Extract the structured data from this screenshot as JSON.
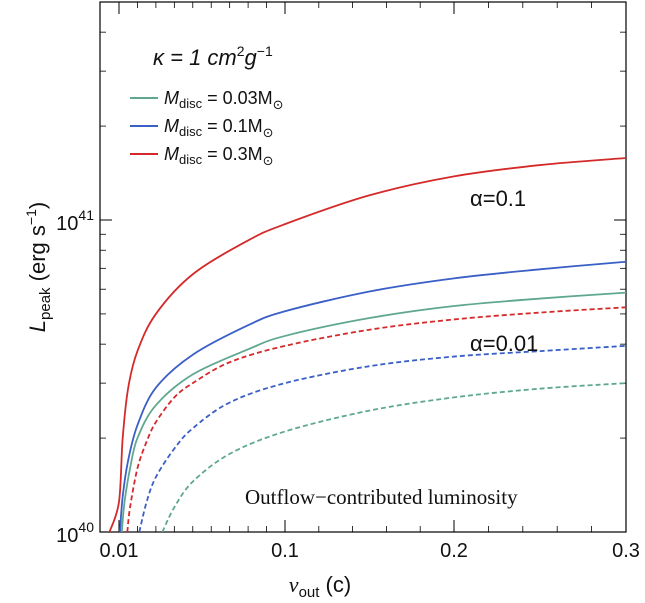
{
  "chart_data": {
    "type": "line",
    "title": "",
    "xlabel": {
      "main": "v",
      "sub": "out",
      "unit": " (c)"
    },
    "ylabel": {
      "main": "L",
      "sub": "peak",
      "unit_pre": " (erg s",
      "unit_exp": "−1",
      "unit_post": ")"
    },
    "x_scale": "broken-linear",
    "y_scale": "log",
    "xlim": [
      0.009,
      0.3
    ],
    "ylim": [
      1e+40,
      4.6e+41
    ],
    "x_ticks": [
      {
        "value": 0.01,
        "label": "0.01"
      },
      {
        "value": 0.1,
        "label": "0.1"
      },
      {
        "value": 0.2,
        "label": "0.2"
      },
      {
        "value": 0.3,
        "label": "0.3"
      }
    ],
    "y_ticks": [
      {
        "value": 1e+40,
        "base": "10",
        "exp": "40"
      },
      {
        "value": 1e+41,
        "base": "10",
        "exp": "41"
      }
    ],
    "annotations": {
      "kappa": {
        "pre": "κ = 1 cm",
        "sup1": "2",
        "mid": "g",
        "sup2": "−1"
      },
      "alpha_high": "α=0.1",
      "alpha_low": "α=0.01",
      "caption": "Outflow−contributed luminosity"
    },
    "legend": {
      "position": "top-left",
      "entries": [
        {
          "name_main": "M",
          "name_sub": "disc",
          "eq": " = 0.03M",
          "sun": "⊙",
          "color": "#5fa88f"
        },
        {
          "name_main": "M",
          "name_sub": "disc",
          "eq": " =   0.1M",
          "sun": "⊙",
          "color": "#3a5fc6"
        },
        {
          "name_main": "M",
          "name_sub": "disc",
          "eq": " =   0.3M",
          "sun": "⊙",
          "color": "#d42a2a"
        }
      ]
    },
    "series": [
      {
        "alpha": "0.1",
        "disc": "0.03",
        "color": "#5fa88f",
        "dash": false,
        "x": [
          0.0115,
          0.013,
          0.016,
          0.02,
          0.03,
          0.05,
          0.08,
          0.1,
          0.15,
          0.2,
          0.25,
          0.3
        ],
        "y": [
          1e+40,
          1.25e+40,
          1.6e+40,
          2e+40,
          2.55e+40,
          3.2e+40,
          3.85e+40,
          4.25e+40,
          4.85e+40,
          5.3e+40,
          5.6e+40,
          5.85e+40
        ]
      },
      {
        "alpha": "0.1",
        "disc": "0.1",
        "color": "#3a5fc6",
        "dash": false,
        "x": [
          0.0105,
          0.012,
          0.015,
          0.02,
          0.03,
          0.05,
          0.08,
          0.1,
          0.15,
          0.2,
          0.25,
          0.3
        ],
        "y": [
          1e+40,
          1.3e+40,
          1.7e+40,
          2.2e+40,
          2.9e+40,
          3.7e+40,
          4.6e+40,
          5.1e+40,
          5.9e+40,
          6.5e+40,
          6.95e+40,
          7.35e+40
        ]
      },
      {
        "alpha": "0.1",
        "disc": "0.3",
        "color": "#d42a2a",
        "dash": false,
        "x": [
          0.0095,
          0.01,
          0.012,
          0.015,
          0.02,
          0.03,
          0.05,
          0.08,
          0.1,
          0.15,
          0.2,
          0.25,
          0.3
        ],
        "y": [
          1e+40,
          1.25e+40,
          2e+40,
          2.9e+40,
          3.8e+40,
          5e+40,
          6.7e+40,
          8.6e+40,
          9.7e+40,
          1.2e+41,
          1.38e+41,
          1.5e+41,
          1.58e+41
        ]
      },
      {
        "alpha": "0.01",
        "disc": "0.03",
        "color": "#5fa88f",
        "dash": true,
        "x": [
          0.0335,
          0.04,
          0.05,
          0.07,
          0.1,
          0.15,
          0.2,
          0.25,
          0.3
        ],
        "y": [
          1e+40,
          1.2e+40,
          1.45e+40,
          1.78e+40,
          2.1e+40,
          2.45e+40,
          2.7e+40,
          2.88e+40,
          3e+40
        ]
      },
      {
        "alpha": "0.01",
        "disc": "0.1",
        "color": "#3a5fc6",
        "dash": true,
        "x": [
          0.021,
          0.025,
          0.03,
          0.04,
          0.05,
          0.07,
          0.1,
          0.15,
          0.2,
          0.25,
          0.3
        ],
        "y": [
          1e+40,
          1.25e+40,
          1.5e+40,
          1.85e+40,
          2.15e+40,
          2.6e+40,
          3e+40,
          3.4e+40,
          3.65e+40,
          3.8e+40,
          3.95e+40
        ]
      },
      {
        "alpha": "0.01",
        "disc": "0.3",
        "color": "#d42a2a",
        "dash": true,
        "x": [
          0.0145,
          0.016,
          0.02,
          0.025,
          0.03,
          0.04,
          0.05,
          0.07,
          0.1,
          0.15,
          0.2,
          0.25,
          0.3
        ],
        "y": [
          1e+40,
          1.2e+40,
          1.6e+40,
          1.95e+40,
          2.25e+40,
          2.7e+40,
          3e+40,
          3.5e+40,
          3.95e+40,
          4.45e+40,
          4.8e+40,
          5.05e+40,
          5.25e+40
        ]
      }
    ]
  }
}
